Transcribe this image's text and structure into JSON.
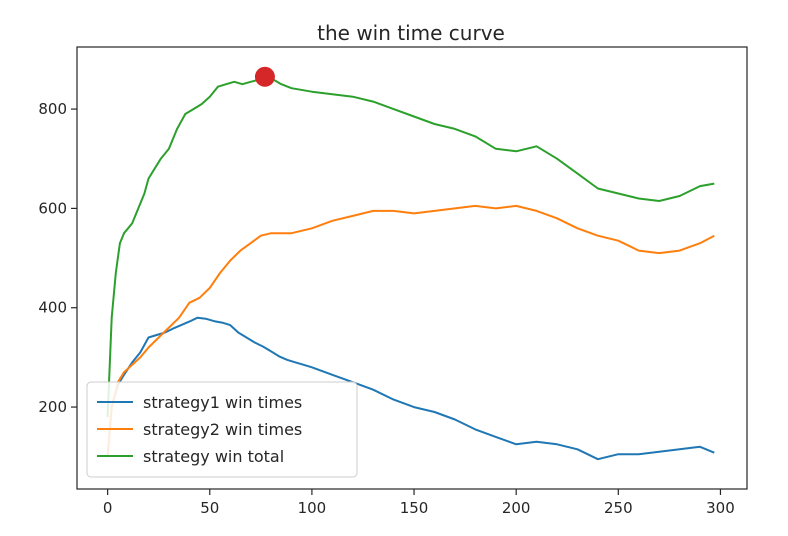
{
  "chart_data": {
    "type": "line",
    "title": "the win time curve",
    "xlabel": "",
    "ylabel": "",
    "xlim": [
      -15,
      313
    ],
    "ylim": [
      35,
      925
    ],
    "xticks": [
      0,
      50,
      100,
      150,
      200,
      250,
      300
    ],
    "yticks": [
      200,
      400,
      600,
      800
    ],
    "grid": false,
    "legend_position": "lower-left",
    "series": [
      {
        "name": "strategy1 win times",
        "color": "#1f77b4",
        "x": [
          0,
          2,
          5,
          8,
          12,
          16,
          20,
          24,
          28,
          32,
          36,
          40,
          44,
          48,
          52,
          56,
          60,
          64,
          68,
          72,
          76,
          80,
          84,
          88,
          92,
          96,
          100,
          110,
          120,
          130,
          140,
          150,
          160,
          170,
          180,
          190,
          200,
          210,
          220,
          230,
          240,
          250,
          260,
          270,
          280,
          290,
          297
        ],
        "y": [
          100,
          200,
          245,
          265,
          290,
          310,
          340,
          345,
          350,
          358,
          365,
          372,
          380,
          378,
          373,
          370,
          365,
          350,
          340,
          330,
          322,
          312,
          302,
          295,
          290,
          285,
          280,
          265,
          250,
          235,
          215,
          200,
          190,
          175,
          155,
          140,
          125,
          130,
          125,
          115,
          95,
          105,
          105,
          110,
          115,
          120,
          108
        ]
      },
      {
        "name": "strategy2 win times",
        "color": "#ff7f0e",
        "x": [
          0,
          2,
          5,
          8,
          12,
          16,
          20,
          25,
          30,
          35,
          40,
          45,
          50,
          55,
          60,
          65,
          70,
          75,
          80,
          85,
          90,
          100,
          110,
          120,
          130,
          140,
          150,
          160,
          170,
          180,
          190,
          200,
          210,
          220,
          230,
          240,
          250,
          260,
          270,
          280,
          290,
          297
        ],
        "y": [
          100,
          200,
          250,
          270,
          285,
          300,
          320,
          340,
          360,
          380,
          410,
          420,
          440,
          470,
          495,
          515,
          530,
          545,
          550,
          550,
          550,
          560,
          575,
          585,
          595,
          595,
          590,
          595,
          600,
          605,
          600,
          605,
          595,
          580,
          560,
          545,
          535,
          515,
          510,
          515,
          530,
          545
        ]
      },
      {
        "name": "strategy win total",
        "color": "#2ca02c",
        "x": [
          0,
          2,
          4,
          6,
          8,
          10,
          12,
          15,
          18,
          20,
          23,
          26,
          30,
          34,
          38,
          42,
          46,
          50,
          54,
          58,
          62,
          66,
          70,
          75,
          80,
          85,
          90,
          100,
          110,
          120,
          130,
          140,
          150,
          160,
          170,
          180,
          190,
          200,
          210,
          220,
          230,
          240,
          250,
          260,
          270,
          280,
          290,
          297
        ],
        "y": [
          180,
          380,
          470,
          530,
          550,
          560,
          570,
          600,
          630,
          660,
          680,
          700,
          720,
          760,
          790,
          800,
          810,
          825,
          845,
          850,
          855,
          850,
          855,
          860,
          862,
          850,
          842,
          835,
          830,
          825,
          815,
          800,
          785,
          770,
          760,
          745,
          720,
          715,
          725,
          700,
          670,
          640,
          630,
          620,
          615,
          625,
          645,
          650
        ]
      }
    ],
    "annotations": [
      {
        "type": "marker",
        "x": 77,
        "y": 865,
        "color": "#d62728"
      }
    ]
  }
}
